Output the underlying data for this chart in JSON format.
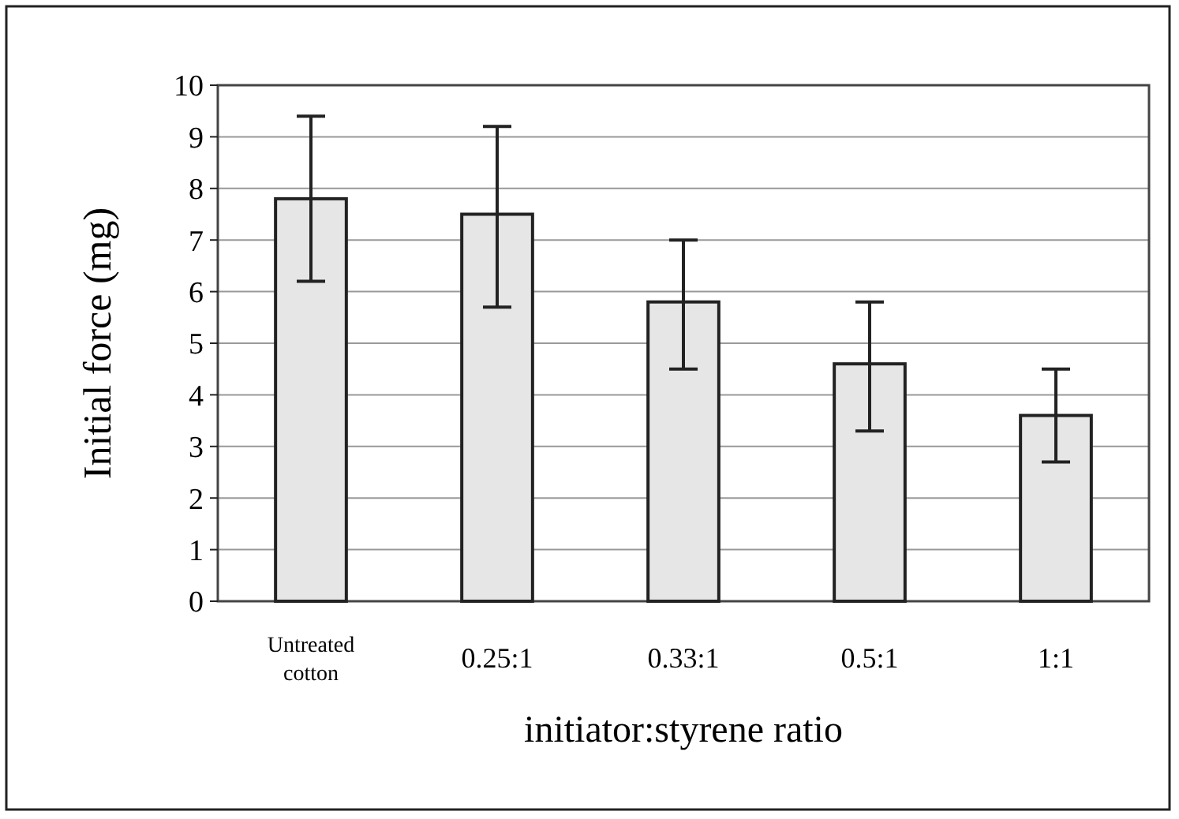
{
  "chart_data": {
    "type": "bar",
    "categories": [
      "Untreated cotton",
      "0.25:1",
      "0.33:1",
      "0.5:1",
      "1:1"
    ],
    "values": [
      7.8,
      7.5,
      5.8,
      4.6,
      3.6
    ],
    "errors": [
      [
        6.2,
        9.4
      ],
      [
        5.7,
        9.2
      ],
      [
        4.5,
        7.0
      ],
      [
        3.3,
        5.8
      ],
      [
        2.7,
        4.5
      ]
    ],
    "color": "#e6e6e6",
    "xlabel": "initiator:styrene ratio",
    "ylabel": "Initial force (mg)",
    "ylim": [
      0,
      10
    ],
    "yticks": [
      0,
      1,
      2,
      3,
      4,
      5,
      6,
      7,
      8,
      9,
      10
    ],
    "grid": "y"
  }
}
